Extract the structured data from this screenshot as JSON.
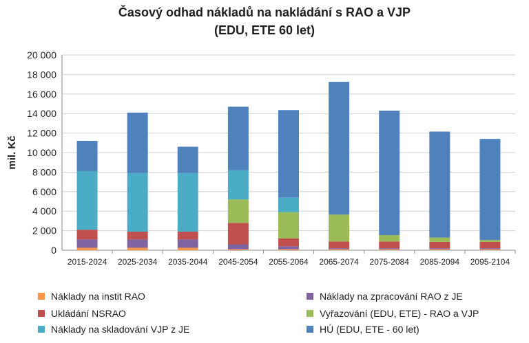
{
  "chart_data": {
    "type": "bar",
    "stacked": true,
    "title_line1": "Časový odhad nákladů na nakládání s RAO a VJP",
    "title_line2": "(EDU, ETE 60 let)",
    "ylabel": "mil. Kč",
    "xlabel": "",
    "ylim": [
      0,
      20000
    ],
    "yticks": [
      "0",
      "2 000",
      "4 000",
      "6 000",
      "8 000",
      "10 000",
      "12 000",
      "14 000",
      "16 000",
      "18 000",
      "20 000"
    ],
    "grid": true,
    "legend_position": "bottom",
    "categories": [
      "2015-2024",
      "2025-2034",
      "2035-2044",
      "2045-2054",
      "2055-2064",
      "2065-2074",
      "2075-2084",
      "2085-2094",
      "2095-2104"
    ],
    "series": [
      {
        "name": "Náklady na instit RAO",
        "color": "#f79646",
        "values": [
          250,
          250,
          250,
          100,
          100,
          100,
          100,
          100,
          100
        ]
      },
      {
        "name": "Náklady na zpracování RAO z JE",
        "color": "#8064a2",
        "values": [
          850,
          850,
          850,
          500,
          300,
          100,
          100,
          100,
          100
        ]
      },
      {
        "name": "Ukládání NSRAO",
        "color": "#c0504d",
        "values": [
          1000,
          800,
          800,
          2200,
          800,
          700,
          700,
          650,
          650
        ]
      },
      {
        "name": "Vyřazování (EDU, ETE) - RAO a VJP",
        "color": "#9bbb59",
        "values": [
          0,
          0,
          0,
          2400,
          2700,
          2750,
          650,
          450,
          200
        ]
      },
      {
        "name": "Náklady na skladování VJP z JE",
        "color": "#4bacc6",
        "values": [
          6000,
          6000,
          6000,
          3000,
          1500,
          0,
          0,
          0,
          0
        ]
      },
      {
        "name": "HÚ (EDU, ETE - 60 let)",
        "color": "#4f81bd",
        "values": [
          3100,
          6200,
          2700,
          6500,
          8950,
          13600,
          12750,
          10850,
          10350
        ]
      }
    ]
  }
}
